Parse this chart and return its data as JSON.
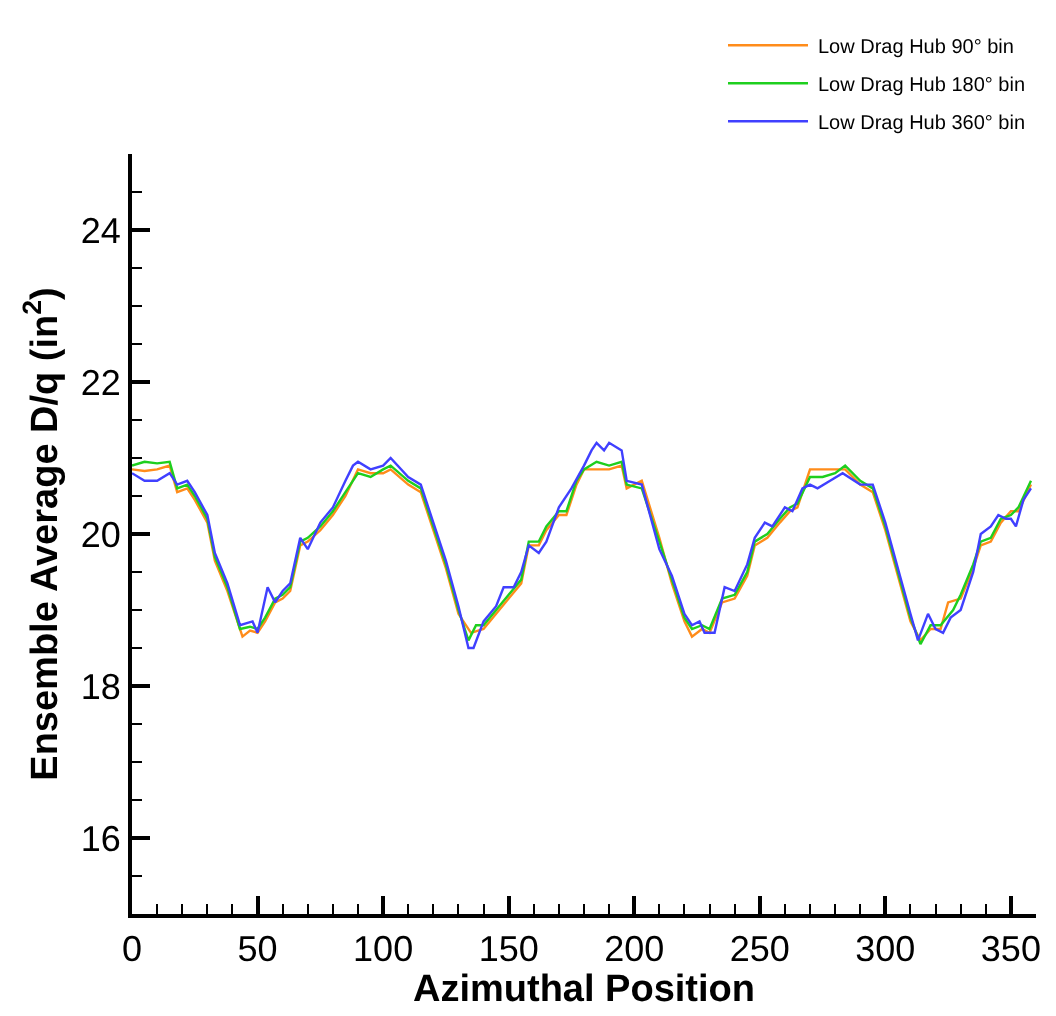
{
  "chart_data": {
    "type": "line",
    "xlabel": "Azimuthal Position",
    "ylabel": "Ensemble Average D/q (in$^{2}$)",
    "xlim": [
      0,
      360
    ],
    "ylim": [
      15,
      25
    ],
    "xticks": [
      0,
      50,
      100,
      150,
      200,
      250,
      300,
      350,
      {
        "value": 10,
        "label": null
      },
      {
        "value": 20,
        "label": null
      },
      {
        "value": 30,
        "label": null
      },
      {
        "value": 40,
        "label": null
      },
      {
        "value": 60,
        "label": null
      },
      {
        "value": 70,
        "label": null
      },
      {
        "value": 80,
        "label": null
      },
      {
        "value": 90,
        "label": null
      },
      {
        "value": 110,
        "label": null
      },
      {
        "value": 120,
        "label": null
      },
      {
        "value": 130,
        "label": null
      },
      {
        "value": 140,
        "label": null
      },
      {
        "value": 160,
        "label": null
      },
      {
        "value": 170,
        "label": null
      },
      {
        "value": 180,
        "label": null
      },
      {
        "value": 190,
        "label": null
      },
      {
        "value": 210,
        "label": null
      },
      {
        "value": 220,
        "label": null
      },
      {
        "value": 230,
        "label": null
      },
      {
        "value": 240,
        "label": null
      },
      {
        "value": 260,
        "label": null
      },
      {
        "value": 270,
        "label": null
      },
      {
        "value": 280,
        "label": null
      },
      {
        "value": 290,
        "label": null
      },
      {
        "value": 310,
        "label": null
      },
      {
        "value": 320,
        "label": null
      },
      {
        "value": 330,
        "label": null
      },
      {
        "value": 340,
        "label": null
      }
    ],
    "yticks": [
      16,
      18,
      20,
      22,
      24,
      {
        "value": 15.5,
        "label": null
      },
      {
        "value": 16.5,
        "label": null
      },
      {
        "value": 17,
        "label": null
      },
      {
        "value": 17.5,
        "label": null
      },
      {
        "value": 18.5,
        "label": null
      },
      {
        "value": 19,
        "label": null
      },
      {
        "value": 19.5,
        "label": null
      },
      {
        "value": 20.5,
        "label": null
      },
      {
        "value": 21,
        "label": null
      },
      {
        "value": 21.5,
        "label": null
      },
      {
        "value": 22.5,
        "label": null
      },
      {
        "value": 23,
        "label": null
      },
      {
        "value": 23.5,
        "label": null
      },
      {
        "value": 24.5,
        "label": null
      }
    ],
    "legend": "top right",
    "marker": "none",
    "line_style": "solid",
    "series": [
      {
        "name": "Low Drag Hub 90° bin",
        "color": "#ff8c1a",
        "x": [
          0,
          5,
          10,
          15,
          18,
          22,
          25,
          30,
          33,
          38,
          44,
          47,
          50,
          53,
          57,
          60,
          63,
          67,
          70,
          75,
          80,
          85,
          90,
          95,
          100,
          103,
          110,
          115,
          120,
          125,
          130,
          135,
          140,
          145,
          150,
          155,
          158,
          162,
          165,
          170,
          173,
          177,
          180,
          185,
          190,
          195,
          197,
          203,
          210,
          215,
          220,
          223,
          227,
          230,
          235,
          240,
          245,
          248,
          253,
          258,
          262,
          265,
          270,
          275,
          280,
          284,
          290,
          295,
          300,
          305,
          310,
          314,
          318,
          322,
          325,
          330,
          335,
          338,
          342,
          346,
          350,
          353,
          358
        ],
        "values": [
          20.85,
          20.83,
          20.85,
          20.9,
          20.55,
          20.6,
          20.45,
          20.15,
          19.65,
          19.25,
          18.65,
          18.73,
          18.7,
          18.85,
          19.1,
          19.15,
          19.25,
          19.85,
          19.9,
          20.05,
          20.25,
          20.5,
          20.85,
          20.8,
          20.8,
          20.85,
          20.65,
          20.55,
          20.05,
          19.55,
          18.95,
          18.7,
          18.75,
          18.95,
          19.15,
          19.35,
          19.85,
          19.85,
          20.05,
          20.25,
          20.25,
          20.65,
          20.85,
          20.85,
          20.85,
          20.9,
          20.6,
          20.7,
          19.95,
          19.35,
          18.85,
          18.65,
          18.75,
          18.7,
          19.1,
          19.15,
          19.45,
          19.85,
          19.95,
          20.15,
          20.3,
          20.35,
          20.85,
          20.85,
          20.85,
          20.85,
          20.65,
          20.55,
          20.05,
          19.45,
          18.85,
          18.6,
          18.75,
          18.75,
          19.1,
          19.15,
          19.55,
          19.85,
          19.9,
          20.15,
          20.3,
          20.3,
          20.65
        ]
      },
      {
        "name": "Low Drag Hub 180° bin",
        "color": "#1ecf1e",
        "x": [
          0,
          5,
          10,
          15,
          18,
          22,
          25,
          30,
          33,
          38,
          43,
          47,
          50,
          53,
          57,
          60,
          63,
          67,
          70,
          75,
          80,
          85,
          90,
          95,
          100,
          103,
          110,
          115,
          120,
          125,
          130,
          134,
          137,
          140,
          145,
          150,
          155,
          158,
          162,
          165,
          170,
          173,
          177,
          180,
          185,
          190,
          195,
          197,
          203,
          210,
          215,
          220,
          223,
          227,
          230,
          235,
          240,
          245,
          248,
          253,
          258,
          262,
          265,
          270,
          275,
          280,
          284,
          290,
          295,
          300,
          305,
          310,
          314,
          318,
          322,
          327,
          330,
          335,
          338,
          342,
          346,
          350,
          353,
          358
        ],
        "values": [
          20.9,
          20.95,
          20.93,
          20.95,
          20.6,
          20.65,
          20.5,
          20.2,
          19.7,
          19.3,
          18.75,
          18.78,
          18.75,
          18.9,
          19.15,
          19.2,
          19.3,
          19.9,
          19.95,
          20.1,
          20.3,
          20.55,
          20.8,
          20.75,
          20.85,
          20.9,
          20.7,
          20.6,
          20.1,
          19.6,
          19.0,
          18.6,
          18.8,
          18.8,
          19.0,
          19.2,
          19.4,
          19.9,
          19.9,
          20.1,
          20.3,
          20.3,
          20.7,
          20.85,
          20.95,
          20.9,
          20.95,
          20.65,
          20.6,
          19.9,
          19.4,
          18.9,
          18.75,
          18.8,
          18.75,
          19.15,
          19.2,
          19.5,
          19.9,
          20.0,
          20.2,
          20.35,
          20.4,
          20.75,
          20.75,
          20.8,
          20.9,
          20.7,
          20.6,
          20.1,
          19.5,
          18.9,
          18.55,
          18.8,
          18.8,
          19.0,
          19.2,
          19.6,
          19.9,
          19.95,
          20.2,
          20.25,
          20.35,
          20.7
        ]
      },
      {
        "name": "Low Drag Hub 360° bin",
        "color": "#4040ff",
        "x": [
          0,
          5,
          10,
          15,
          18,
          22,
          25,
          30,
          33,
          38,
          43,
          48,
          50,
          54,
          57,
          60,
          63,
          67,
          70,
          75,
          80,
          85,
          88,
          90,
          95,
          100,
          103,
          110,
          115,
          120,
          125,
          130,
          134,
          136,
          140,
          145,
          148,
          152,
          155,
          158,
          162,
          165,
          170,
          175,
          180,
          183,
          185,
          188,
          190,
          195,
          197,
          203,
          210,
          215,
          220,
          223,
          226,
          228,
          232,
          236,
          240,
          245,
          248,
          252,
          255,
          260,
          263,
          267,
          270,
          273,
          278,
          283,
          290,
          295,
          300,
          305,
          310,
          313,
          317,
          320,
          323,
          326,
          330,
          335,
          338,
          342,
          345,
          348,
          350,
          352,
          355,
          358
        ],
        "values": [
          20.8,
          20.7,
          20.7,
          20.8,
          20.65,
          20.7,
          20.55,
          20.25,
          19.75,
          19.35,
          18.8,
          18.85,
          18.7,
          19.3,
          19.1,
          19.25,
          19.35,
          19.95,
          19.8,
          20.15,
          20.35,
          20.7,
          20.9,
          20.95,
          20.85,
          20.9,
          21.0,
          20.75,
          20.65,
          20.15,
          19.65,
          19.05,
          18.5,
          18.5,
          18.85,
          19.05,
          19.3,
          19.3,
          19.5,
          19.85,
          19.75,
          19.9,
          20.35,
          20.6,
          20.9,
          21.1,
          21.2,
          21.1,
          21.2,
          21.1,
          20.7,
          20.65,
          19.8,
          19.45,
          18.95,
          18.8,
          18.85,
          18.7,
          18.7,
          19.3,
          19.25,
          19.6,
          19.95,
          20.15,
          20.1,
          20.35,
          20.3,
          20.6,
          20.65,
          20.6,
          20.7,
          20.8,
          20.65,
          20.65,
          20.15,
          19.55,
          18.95,
          18.6,
          18.95,
          18.75,
          18.7,
          18.9,
          19.0,
          19.5,
          20.0,
          20.1,
          20.25,
          20.2,
          20.2,
          20.1,
          20.45,
          20.6
        ]
      }
    ]
  }
}
